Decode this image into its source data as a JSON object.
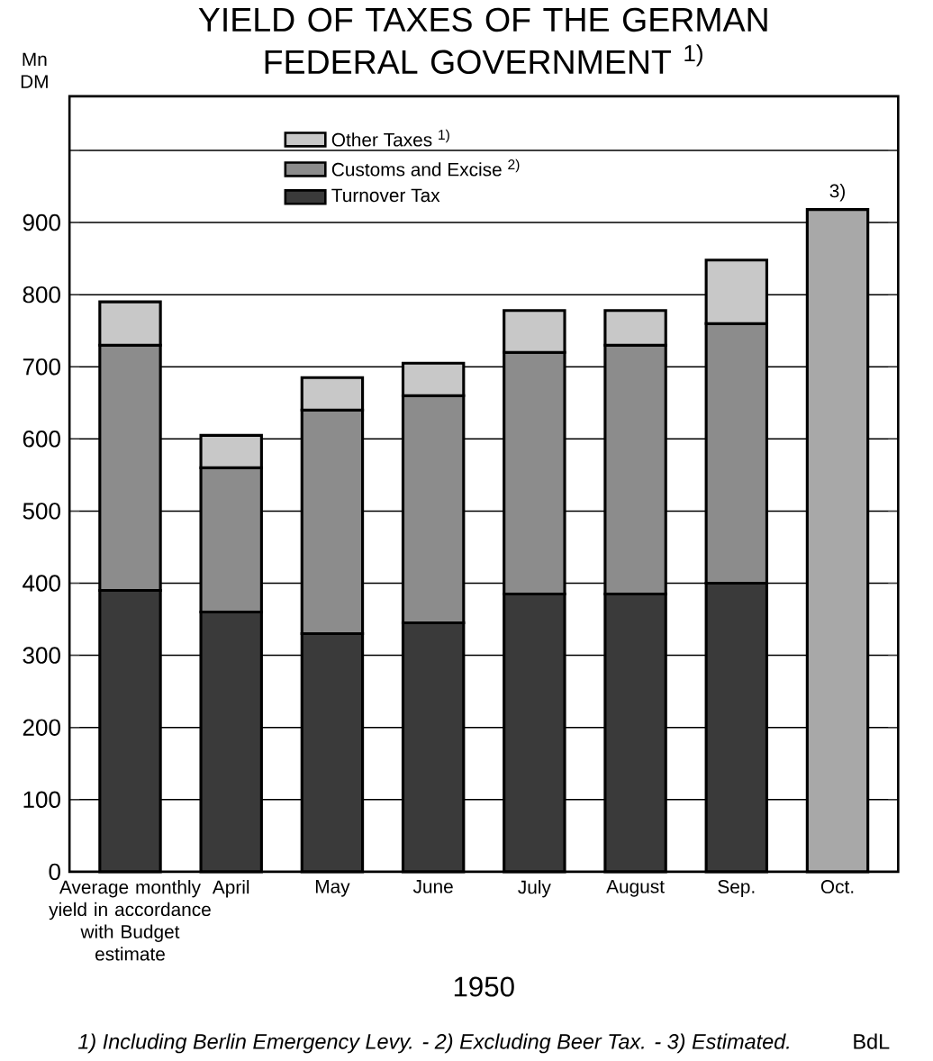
{
  "chart_data": {
    "type": "bar",
    "title": "YIELD OF TAXES OF THE GERMAN FEDERAL GOVERNMENT $^{1)}$",
    "ylabel": "Mn DM",
    "xlabel": "1950",
    "categories": [
      "Average monthly yield in accordance with Budget estimate",
      "April",
      "May",
      "June",
      "July",
      "August",
      "Sep.",
      "Oct."
    ],
    "stacked": true,
    "series": [
      {
        "name": "Turnover Tax",
        "color": "#3a3a3a",
        "values": [
          390,
          360,
          330,
          345,
          385,
          385,
          400,
          null
        ]
      },
      {
        "name": "Customs and Excise $^{2)}$",
        "color": "#8c8c8c",
        "values": [
          340,
          200,
          310,
          315,
          335,
          345,
          360,
          null
        ]
      },
      {
        "name": "Other Taxes $^{1)}$",
        "color": "#c8c8c8",
        "values": [
          60,
          45,
          45,
          45,
          58,
          48,
          88,
          null
        ]
      },
      {
        "color": "#a8a8a8",
        "values": [
          null,
          null,
          null,
          null,
          null,
          null,
          null,
          918
        ]
      }
    ],
    "ylim": [
      0,
      1075
    ],
    "yticks": [
      0,
      100,
      200,
      300,
      400,
      500,
      600,
      700,
      800,
      900,
      {
        "value": 1000,
        "label": null
      }
    ],
    "grid": "y",
    "legend": "top left",
    "annotations": [
      {
        "text": "3)",
        "x": "Oct.",
        "y": 918
      },
      "1) Including Berlin Emergency Levy. - 2) Excluding Beer Tax. - 3) Estimated.",
      "BdL"
    ]
  }
}
